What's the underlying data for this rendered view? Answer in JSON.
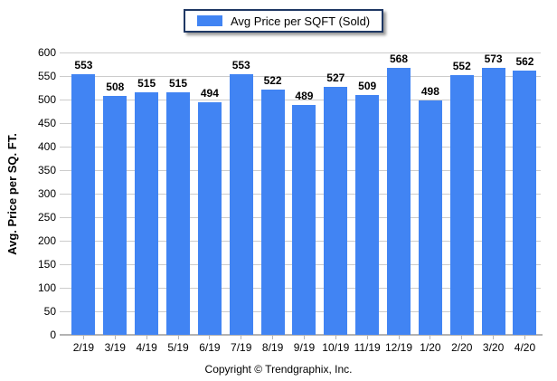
{
  "legend": {
    "label": "Avg Price per SQFT (Sold)",
    "swatch_color": "#4184F3",
    "swatch_icon": "legend-swatch-blue"
  },
  "footer": {
    "copyright": "Copyright © Trendgraphix, Inc."
  },
  "colors": {
    "bar": "#4184F3",
    "gridline": "#CCCCCC",
    "axis": "#B3B3B3",
    "legend_border": "#1F3864",
    "text": "#000000"
  },
  "chart_data": {
    "type": "bar",
    "title": "",
    "xlabel": "",
    "ylabel": "Avg. Price per SQ. FT.",
    "categories": [
      "2/19",
      "3/19",
      "4/19",
      "5/19",
      "6/19",
      "7/19",
      "8/19",
      "9/19",
      "10/19",
      "11/19",
      "12/19",
      "1/20",
      "2/20",
      "3/20",
      "4/20"
    ],
    "series": [
      {
        "name": "Avg Price per SQFT (Sold)",
        "values": [
          553,
          508,
          515,
          515,
          494,
          553,
          522,
          489,
          527,
          509,
          568,
          498,
          552,
          573,
          562
        ]
      }
    ],
    "ylim": [
      0,
      600
    ],
    "ytick_step": 50,
    "grid": true,
    "legend_position": "top-center",
    "value_labels": true
  }
}
